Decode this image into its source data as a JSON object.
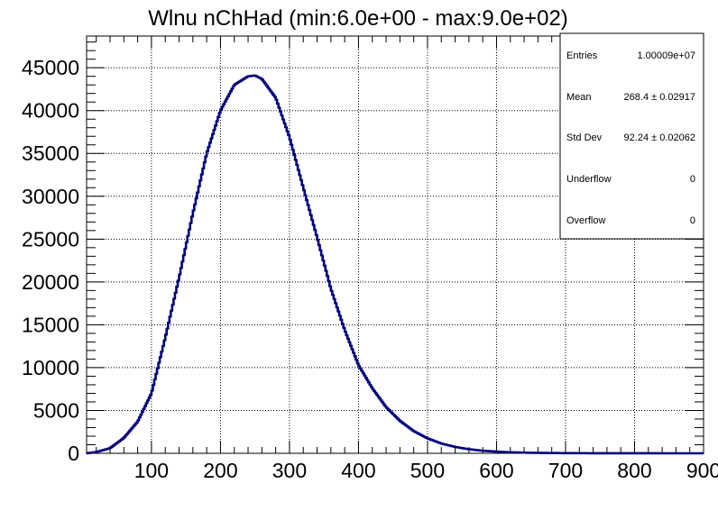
{
  "chart_data": {
    "type": "line",
    "title": "Wlnu nChHad (min:6.0e+00 - max:9.0e+02)",
    "xlabel": "",
    "ylabel": "",
    "xlim": [
      6,
      900
    ],
    "ylim": [
      0,
      48700
    ],
    "grid": true,
    "x_ticks": [
      100,
      200,
      300,
      400,
      500,
      600,
      700,
      800,
      900
    ],
    "x_tick_labels": [
      "100",
      "200",
      "300",
      "400",
      "500",
      "600",
      "700",
      "800",
      "900"
    ],
    "y_ticks": [
      0,
      5000,
      10000,
      15000,
      20000,
      25000,
      30000,
      35000,
      40000,
      45000
    ],
    "y_tick_labels": [
      "0",
      "5000",
      "10000",
      "15000",
      "20000",
      "25000",
      "30000",
      "35000",
      "40000",
      "45000"
    ],
    "series": [
      {
        "color": "#000080",
        "x": [
          6,
          20,
          40,
          60,
          80,
          100,
          120,
          140,
          160,
          180,
          200,
          220,
          240,
          250,
          260,
          280,
          300,
          320,
          340,
          360,
          380,
          400,
          420,
          440,
          460,
          480,
          500,
          520,
          540,
          560,
          580,
          600,
          620,
          650,
          700,
          750,
          800,
          850,
          900
        ],
        "y": [
          0,
          150,
          600,
          1800,
          3700,
          7000,
          13500,
          20500,
          28000,
          35000,
          40000,
          43000,
          44000,
          44100,
          43700,
          41500,
          36900,
          31000,
          25200,
          19200,
          14400,
          10300,
          7600,
          5400,
          3800,
          2600,
          1750,
          1150,
          750,
          480,
          300,
          200,
          120,
          60,
          20,
          8,
          3,
          1,
          0
        ]
      }
    ]
  },
  "stats_box": {
    "rows": [
      {
        "label": "Entries",
        "value": "1.00009e+07"
      },
      {
        "label": "Mean",
        "value": "268.4 ± 0.02917"
      },
      {
        "label": "Std Dev",
        "value": "92.24 ± 0.02062"
      },
      {
        "label": "Underflow",
        "value": "0"
      },
      {
        "label": "Overflow",
        "value": "0"
      }
    ]
  }
}
